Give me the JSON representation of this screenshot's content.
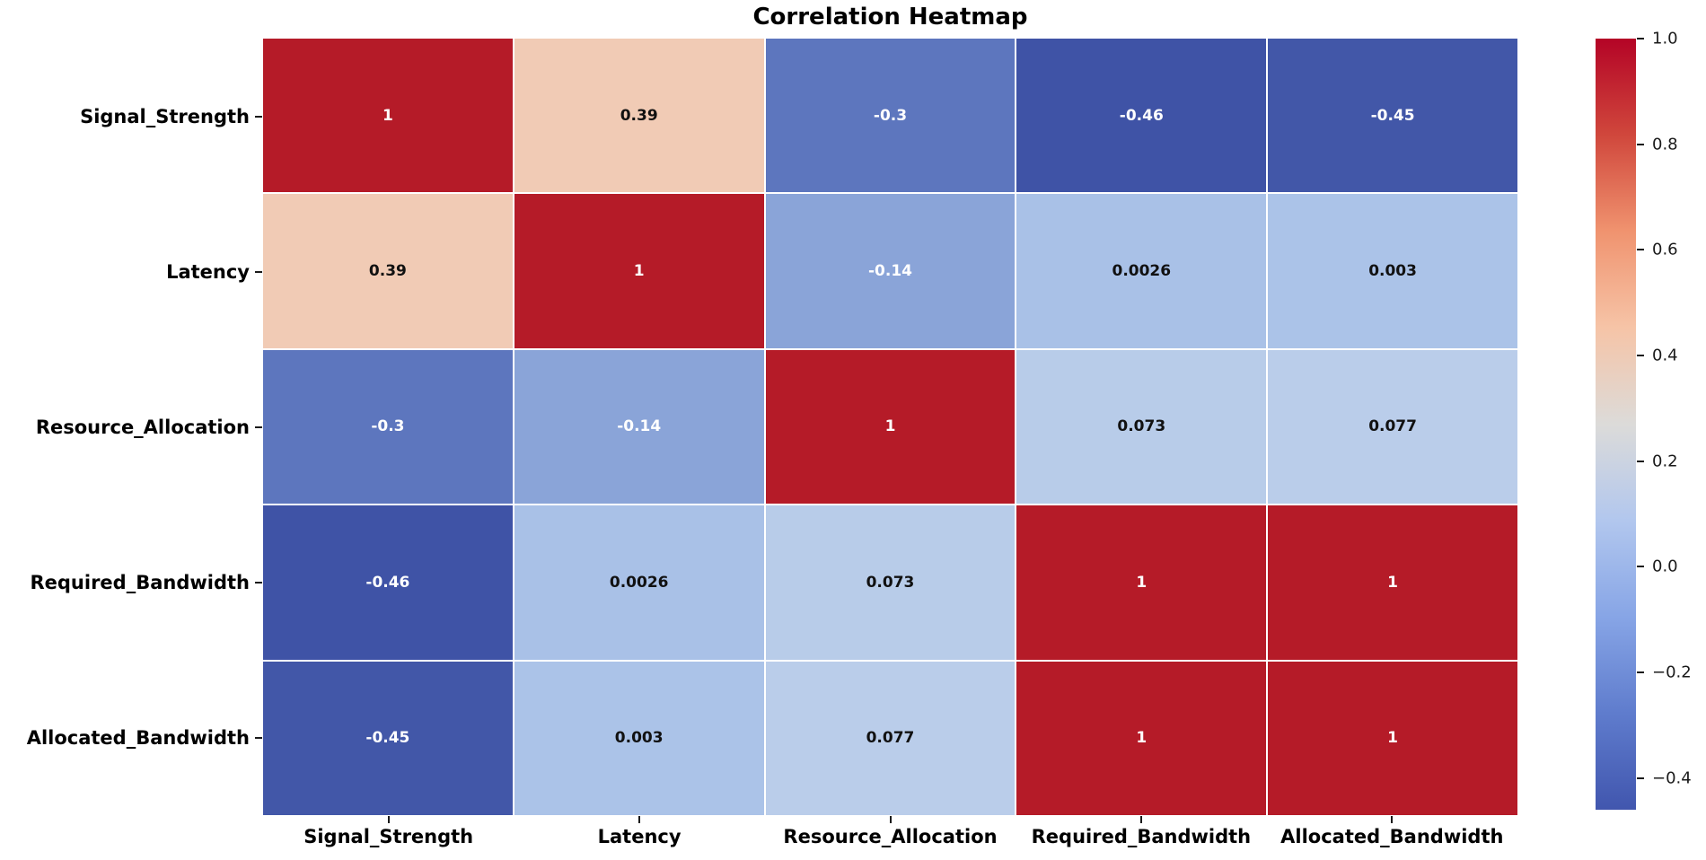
{
  "title": "Correlation Heatmap",
  "chart_data": {
    "type": "heatmap",
    "title": "Correlation Heatmap",
    "categories": [
      "Signal_Strength",
      "Latency",
      "Resource_Allocation",
      "Required_Bandwidth",
      "Allocated_Bandwidth"
    ],
    "x_tick_labels": [
      "Signal_Strength",
      "Latency",
      "Resource_Allocation",
      "Required_Bandwidth",
      "Allocated_Bandwidth"
    ],
    "y_tick_labels": [
      "Signal_Strength",
      "Latency",
      "Resource_Allocation",
      "Required_Bandwidth",
      "Allocated_Bandwidth"
    ],
    "matrix": [
      [
        1,
        0.39,
        -0.3,
        -0.46,
        -0.45
      ],
      [
        0.39,
        1,
        -0.14,
        0.0026,
        0.003
      ],
      [
        -0.3,
        -0.14,
        1,
        0.073,
        0.077
      ],
      [
        -0.46,
        0.0026,
        0.073,
        1,
        1
      ],
      [
        -0.45,
        0.003,
        0.077,
        1,
        1
      ]
    ],
    "cell_labels": [
      [
        "1",
        "0.39",
        "-0.3",
        "-0.46",
        "-0.45"
      ],
      [
        "0.39",
        "1",
        "-0.14",
        "0.0026",
        "0.003"
      ],
      [
        "-0.3",
        "-0.14",
        "1",
        "0.073",
        "0.077"
      ],
      [
        "-0.46",
        "0.0026",
        "0.073",
        "1",
        "1"
      ],
      [
        "-0.45",
        "0.003",
        "0.077",
        "1",
        "1"
      ]
    ],
    "cell_colors": [
      [
        "#b51b28",
        "#f1cbb5",
        "#5d76be",
        "#3f53a6",
        "#4257a8"
      ],
      [
        "#f1cbb5",
        "#b51b28",
        "#8aa4d8",
        "#a9c1e7",
        "#abc3e8"
      ],
      [
        "#5d76be",
        "#8aa4d8",
        "#b51b28",
        "#b8cce9",
        "#bacdea"
      ],
      [
        "#3f53a6",
        "#a9c1e7",
        "#b8cce9",
        "#b51b28",
        "#b51b28"
      ],
      [
        "#4257a8",
        "#abc3e8",
        "#bacdea",
        "#b51b28",
        "#b51b28"
      ]
    ],
    "cell_text_colors": [
      [
        "#ffffff",
        "#111111",
        "#ffffff",
        "#ffffff",
        "#ffffff"
      ],
      [
        "#111111",
        "#ffffff",
        "#ffffff",
        "#111111",
        "#111111"
      ],
      [
        "#ffffff",
        "#ffffff",
        "#ffffff",
        "#111111",
        "#111111"
      ],
      [
        "#ffffff",
        "#111111",
        "#111111",
        "#ffffff",
        "#ffffff"
      ],
      [
        "#ffffff",
        "#111111",
        "#111111",
        "#ffffff",
        "#ffffff"
      ]
    ],
    "colormap": "coolwarm",
    "vmin": -0.46,
    "vmax": 1.0,
    "grid_line_color": "#ffffff",
    "legend_position": "colorbar-right",
    "colorbar": {
      "tick_values": [
        1.0,
        0.8,
        0.6,
        0.4,
        0.2,
        0.0,
        -0.2,
        -0.4
      ],
      "tick_labels": [
        "1.0",
        "0.8",
        "0.6",
        "0.4",
        "0.2",
        "0.0",
        "−0.2",
        "−0.4"
      ],
      "gradient_stops": [
        {
          "pos": 0,
          "color": "#b40426"
        },
        {
          "pos": 12.5,
          "color": "#d0473c"
        },
        {
          "pos": 25,
          "color": "#f0936f"
        },
        {
          "pos": 37.5,
          "color": "#f6c4a7"
        },
        {
          "pos": 50,
          "color": "#dcdbd9"
        },
        {
          "pos": 62.5,
          "color": "#b2c7ee"
        },
        {
          "pos": 75,
          "color": "#87a5e6"
        },
        {
          "pos": 87.5,
          "color": "#5f7ccd"
        },
        {
          "pos": 100,
          "color": "#4156ae"
        }
      ]
    }
  },
  "colors": {
    "background": "#ffffff",
    "label_color": "#000000"
  }
}
